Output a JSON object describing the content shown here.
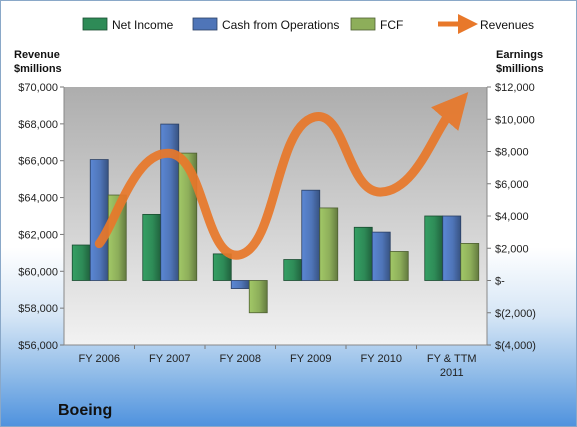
{
  "company": "Boeing",
  "chart_data": {
    "type": "bar",
    "legend_position": "top",
    "grid": false,
    "categories": [
      "FY 2006",
      "FY 2007",
      "FY 2008",
      "FY 2009",
      "FY 2010",
      "FY & TTM 2011"
    ],
    "left_axis": {
      "title_line1": "Revenue",
      "title_line2": "$millions",
      "range": [
        56000,
        70000
      ],
      "ticks": [
        {
          "value": 56000,
          "label": "$56,000"
        },
        {
          "value": 58000,
          "label": "$58,000"
        },
        {
          "value": 60000,
          "label": "$60,000"
        },
        {
          "value": 62000,
          "label": "$62,000"
        },
        {
          "value": 64000,
          "label": "$64,000"
        },
        {
          "value": 66000,
          "label": "$66,000"
        },
        {
          "value": 68000,
          "label": "$68,000"
        },
        {
          "value": 70000,
          "label": "$70,000"
        }
      ]
    },
    "right_axis": {
      "title_line1": "Earnings",
      "title_line2": "$millions",
      "range": [
        -4000,
        12000
      ],
      "ticks": [
        {
          "value": -4000,
          "label": "$(4,000)"
        },
        {
          "value": -2000,
          "label": "$(2,000)"
        },
        {
          "value": 0,
          "label": "$-"
        },
        {
          "value": 2000,
          "label": "$2,000"
        },
        {
          "value": 4000,
          "label": "$4,000"
        },
        {
          "value": 6000,
          "label": "$6,000"
        },
        {
          "value": 8000,
          "label": "$8,000"
        },
        {
          "value": 10000,
          "label": "$10,000"
        },
        {
          "value": 12000,
          "label": "$12,000"
        }
      ]
    },
    "series": [
      {
        "name": "Net Income",
        "kind": "bar",
        "axis": "right",
        "color": "#2e8b57",
        "values": [
          2200,
          4100,
          1650,
          1300,
          3300,
          4000
        ]
      },
      {
        "name": "Cash from Operations",
        "kind": "bar",
        "axis": "right",
        "color": "#4f75b8",
        "values": [
          7500,
          9700,
          -500,
          5600,
          3000,
          4000
        ]
      },
      {
        "name": "FCF",
        "kind": "bar",
        "axis": "right",
        "color": "#8dae5a",
        "values": [
          5300,
          7900,
          -2000,
          4500,
          1800,
          2300
        ]
      },
      {
        "name": "Revenues",
        "kind": "line",
        "axis": "left",
        "color": "#e8782a",
        "values": [
          61500,
          66400,
          60900,
          68300,
          64300,
          68700
        ]
      }
    ]
  }
}
